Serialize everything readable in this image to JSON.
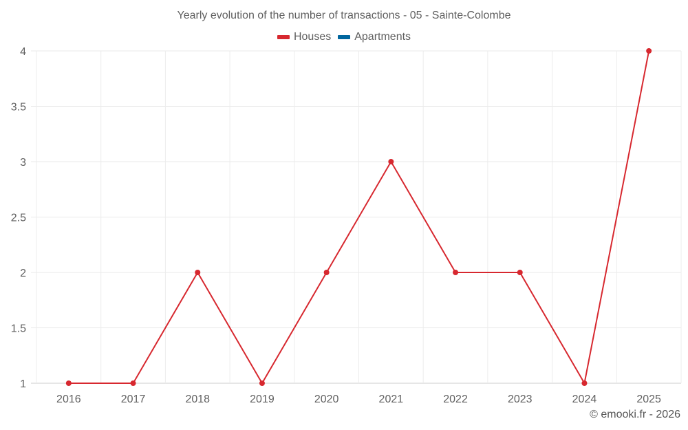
{
  "title": "Yearly evolution of the number of transactions - 05 - Sainte-Colombe",
  "legend": [
    {
      "label": "Houses",
      "color": "#d7282f"
    },
    {
      "label": "Apartments",
      "color": "#00669e"
    }
  ],
  "credit": "© emooki.fr - 2026",
  "chart_data": {
    "type": "line",
    "title": "Yearly evolution of the number of transactions - 05 - Sainte-Colombe",
    "xlabel": "",
    "ylabel": "",
    "categories": [
      "2016",
      "2017",
      "2018",
      "2019",
      "2020",
      "2021",
      "2022",
      "2023",
      "2024",
      "2025"
    ],
    "series": [
      {
        "name": "Houses",
        "color": "#d7282f",
        "values": [
          1,
          1,
          2,
          1,
          2,
          3,
          2,
          2,
          1,
          4
        ]
      },
      {
        "name": "Apartments",
        "color": "#00669e",
        "values": []
      }
    ],
    "ylim": [
      1,
      4
    ],
    "yticks": [
      "1",
      "1.5",
      "2",
      "2.5",
      "3",
      "3.5",
      "4"
    ],
    "grid": true,
    "legend_position": "top"
  }
}
